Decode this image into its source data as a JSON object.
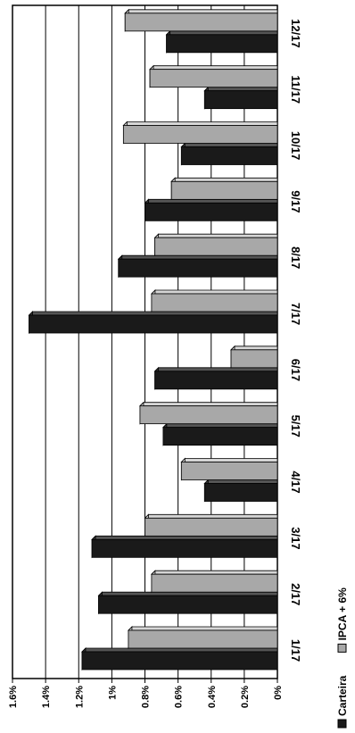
{
  "chart_data": {
    "type": "bar",
    "orientation": "horizontal",
    "rotated": "90deg-clockwise",
    "categories": [
      "1/17",
      "2/17",
      "3/17",
      "4/17",
      "5/17",
      "6/17",
      "7/17",
      "8/17",
      "9/17",
      "10/17",
      "11/17",
      "12/17"
    ],
    "series": [
      {
        "name": "Carteira",
        "color": "#1a1a1a",
        "values": [
          1.18,
          1.08,
          1.12,
          0.44,
          0.69,
          0.74,
          1.5,
          0.96,
          0.8,
          0.58,
          0.44,
          0.67
        ]
      },
      {
        "name": "IPCA + 6%",
        "color": "#a8a8a8",
        "values": [
          0.9,
          0.76,
          0.8,
          0.58,
          0.83,
          0.28,
          0.76,
          0.74,
          0.64,
          0.93,
          0.77,
          0.92
        ]
      }
    ],
    "tick_labels": [
      "0%",
      "0.2%",
      "0.4%",
      "0.6%",
      "0.8%",
      "1%",
      "1.2%",
      "1.4%",
      "1.6%"
    ],
    "xlim": [
      0,
      1.6
    ],
    "grid": true,
    "legend_position": "bottom"
  }
}
